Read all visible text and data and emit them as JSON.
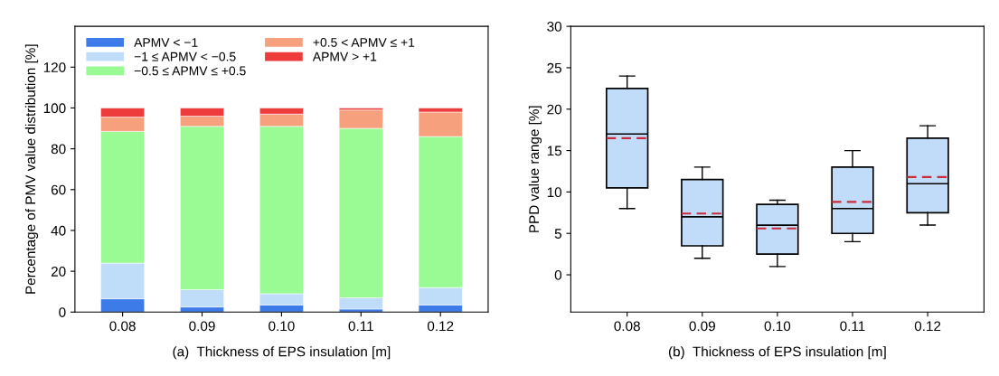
{
  "chart_data": [
    {
      "type": "bar",
      "stacked": true,
      "xlabel": "(a)  Thickness of EPS insulation [m]",
      "ylabel": "Percentage of PMV value distribution [%]",
      "categories": [
        "0.08",
        "0.09",
        "0.10",
        "0.11",
        "0.12"
      ],
      "series": [
        {
          "name": "APMV < −1",
          "color": "#3d7be8",
          "values": [
            6.5,
            2.5,
            3.5,
            1.5,
            3.5
          ]
        },
        {
          "name": "−1 ≤ APMV < −0.5",
          "color": "#bfdcf8",
          "values": [
            17.5,
            8.5,
            5.5,
            5.5,
            8.5
          ]
        },
        {
          "name": "−0.5 ≤ APMV ≤ +0.5",
          "color": "#9afa94",
          "values": [
            64.5,
            80,
            82,
            83,
            74
          ]
        },
        {
          "name": "+0.5 < APMV ≤ +1",
          "color": "#f6a07e",
          "values": [
            7,
            5,
            6,
            9,
            12
          ]
        },
        {
          "name": "APMV > +1",
          "color": "#ee3b3b",
          "values": [
            4.5,
            4,
            3,
            1,
            2
          ]
        }
      ],
      "ylim": [
        0,
        140
      ],
      "yticks": [
        0,
        20,
        40,
        60,
        80,
        100,
        120
      ],
      "legend": "top left",
      "grid": false
    },
    {
      "type": "box",
      "xlabel": "(b)  Thickness of EPS insulation [m]",
      "ylabel": "PPD value range [%]",
      "categories": [
        "0.08",
        "0.09",
        "0.10",
        "0.11",
        "0.12"
      ],
      "series": [
        {
          "color": "#c0dcf8",
          "boxes": [
            {
              "low": 8,
              "q1": 10.5,
              "median": 17,
              "q3": 22.5,
              "high": 24,
              "mean": 16.5
            },
            {
              "low": 2,
              "q1": 3.5,
              "median": 7,
              "q3": 11.5,
              "high": 13,
              "mean": 7.4
            },
            {
              "low": 1,
              "q1": 2.5,
              "median": 6,
              "q3": 8.5,
              "high": 9,
              "mean": 5.6
            },
            {
              "low": 4,
              "q1": 5,
              "median": 8,
              "q3": 13,
              "high": 15,
              "mean": 8.8
            },
            {
              "low": 6,
              "q1": 7.5,
              "median": 11,
              "q3": 16.5,
              "high": 18,
              "mean": 11.8
            }
          ]
        }
      ],
      "ylim": [
        -4.5,
        30
      ],
      "yticks": [
        0,
        5,
        10,
        15,
        20,
        25,
        30
      ],
      "grid": false,
      "legend": false
    }
  ]
}
